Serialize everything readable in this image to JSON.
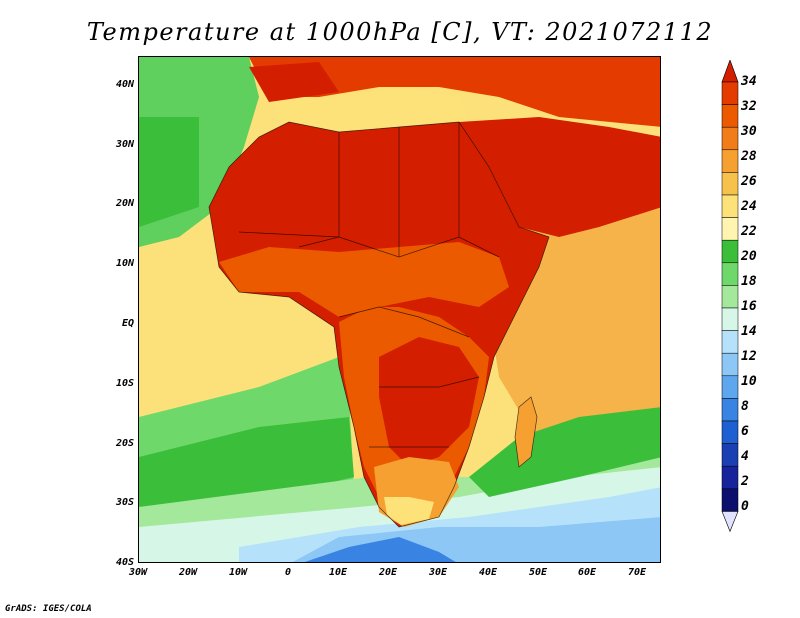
{
  "title": "Temperature at 1000hPa [C], VT: 2021072112",
  "map": {
    "projection": "lat-lon",
    "field": "temperature",
    "lat_labels": [
      "40N",
      "30N",
      "20N",
      "10N",
      "EQ",
      "10S",
      "20S",
      "30S",
      "40S"
    ],
    "lon_labels": [
      "30W",
      "20W",
      "10W",
      "0",
      "10E",
      "20E",
      "30E",
      "40E",
      "50E",
      "60E",
      "70E"
    ],
    "lat_range": [
      -40,
      45
    ],
    "lon_range": [
      -30,
      75
    ]
  },
  "colorbar": {
    "labels": [
      "34",
      "32",
      "30",
      "28",
      "26",
      "24",
      "22",
      "20",
      "18",
      "16",
      "14",
      "12",
      "10",
      "8",
      "6",
      "4",
      "2",
      "0"
    ],
    "colors": [
      "#d41e00",
      "#e33b00",
      "#ec5a00",
      "#f07d1a",
      "#f5a030",
      "#f7c24c",
      "#fde27a",
      "#fff5b0",
      "#3bbf3b",
      "#6fd86a",
      "#a4e89c",
      "#d6f7e8",
      "#b5e2fa",
      "#8cc7f5",
      "#5ea6ee",
      "#3983e2",
      "#1e5fd1",
      "#1a3fb3",
      "#16239a",
      "#0c0f6e"
    ],
    "under_color": "#e2e2ff"
  },
  "credit": "GrADS: IGES/COLA"
}
